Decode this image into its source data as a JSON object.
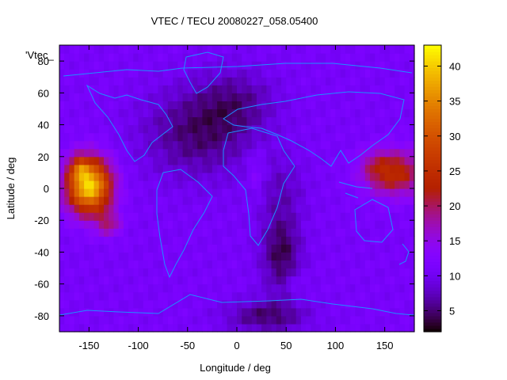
{
  "title": "VTEC / TECU 20080227_058.05400",
  "key_label": "'Vtec_",
  "xlabel": "Longitude / deg",
  "ylabel": "Latitude / deg",
  "x_ticks": [
    "-150",
    "-100",
    "-50",
    "0",
    "50",
    "100",
    "150"
  ],
  "y_ticks": [
    "-80",
    "-60",
    "-40",
    "-20",
    "0",
    "20",
    "40",
    "60",
    "80"
  ],
  "cb_ticks": [
    "5",
    "10",
    "15",
    "20",
    "25",
    "30",
    "35",
    "40"
  ],
  "chart_data": {
    "type": "heatmap",
    "title": "VTEC / TECU 20080227_058.05400",
    "xlabel": "Longitude / deg",
    "ylabel": "Latitude / deg",
    "xlim": [
      -180,
      180
    ],
    "ylim": [
      -90,
      90
    ],
    "colorbar_range": [
      2,
      43
    ],
    "colorbar_ticks": [
      5,
      10,
      15,
      20,
      25,
      30,
      35,
      40
    ],
    "palette": "black-purple-red-yellow",
    "background_value": 11,
    "features": [
      {
        "lon": -150,
        "lat": 2,
        "slon": 22,
        "slat": 17,
        "amp": 30
      },
      {
        "lon": -160,
        "lat": 13,
        "slon": 9,
        "slat": 7,
        "amp": 8
      },
      {
        "lon": -130,
        "lat": -22,
        "slon": 13,
        "slat": 8,
        "amp": 7
      },
      {
        "lon": 160,
        "lat": 10,
        "slon": 30,
        "slat": 14,
        "amp": 13
      },
      {
        "lon": 140,
        "lat": 15,
        "slon": 15,
        "slat": 10,
        "amp": 3
      },
      {
        "lon": -40,
        "lat": 35,
        "slon": 55,
        "slat": 28,
        "amp": -6
      },
      {
        "lon": 45,
        "lat": -40,
        "slon": 20,
        "slat": 25,
        "amp": -7
      },
      {
        "lon": 30,
        "lat": -80,
        "slon": 40,
        "slat": 10,
        "amp": -6
      },
      {
        "lon": 0,
        "lat": 55,
        "slon": 40,
        "slat": 20,
        "amp": -4
      },
      {
        "lon": 45,
        "lat": 0,
        "slon": 25,
        "slat": 20,
        "amp": -3
      },
      {
        "lon": 20,
        "lat": 10,
        "slon": 10,
        "slat": 15,
        "amp": 3
      },
      {
        "lon": 60,
        "lat": -60,
        "slon": 10,
        "slat": 8,
        "amp": 2
      }
    ]
  }
}
